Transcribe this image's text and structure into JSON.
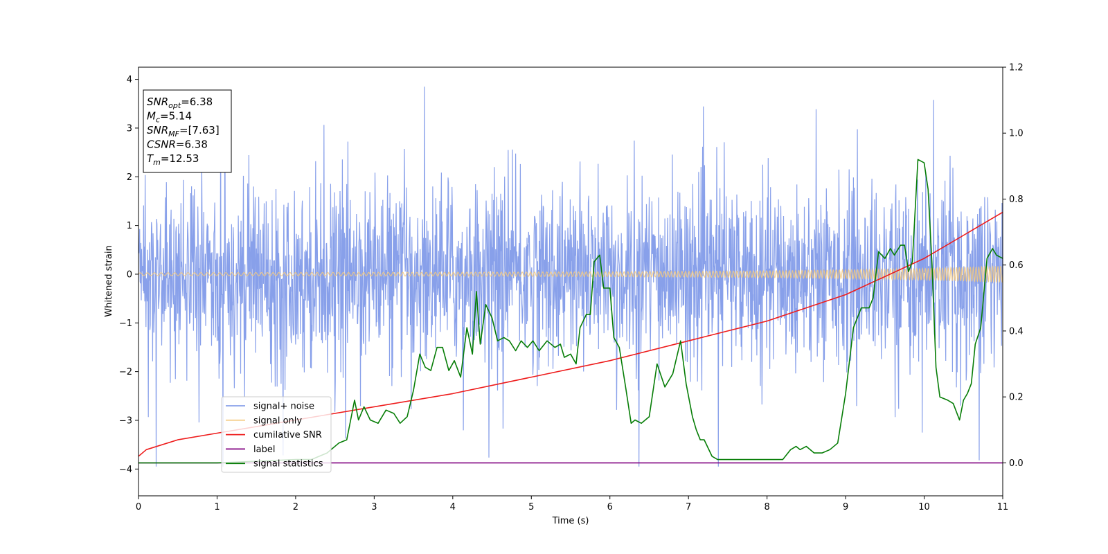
{
  "chart_data": {
    "type": "line",
    "xlabel": "Time (s)",
    "ylabel": "Whitened strain",
    "xlim": [
      0,
      11
    ],
    "ylim": [
      -4.55,
      4.25
    ],
    "y2lim": [
      -0.1,
      1.2
    ],
    "xticks": [
      "0",
      "1",
      "2",
      "3",
      "4",
      "5",
      "6",
      "7",
      "8",
      "9",
      "10",
      "11"
    ],
    "yticks": [
      "4",
      "3",
      "2",
      "1",
      "0",
      "−1",
      "−2",
      "−3",
      "−4"
    ],
    "y2ticks": [
      "0.0",
      "0.2",
      "0.4",
      "0.6",
      "0.8",
      "1.0",
      "1.2"
    ],
    "grid": false,
    "legend_position": "lower-left",
    "legend": [
      {
        "label": "signal+ noise",
        "color": "#7b96e8"
      },
      {
        "label": "signal only",
        "color": "#f5c97e"
      },
      {
        "label": "cumilative SNR",
        "color": "#ee1c1c"
      },
      {
        "label": "label",
        "color": "#800080"
      },
      {
        "label": "signal statistics",
        "color": "#067d06"
      }
    ],
    "info_box": [
      {
        "main": "SNR",
        "sub": "opt",
        "value": "=6.38"
      },
      {
        "main": "M",
        "sub": "c",
        "value": "=5.14"
      },
      {
        "main": "SNR",
        "sub": "MF",
        "value": "=[7.63]"
      },
      {
        "main": "CSNR",
        "sub": "",
        "value": "=6.38"
      },
      {
        "main": "T",
        "sub": "m",
        "value": "=12.53"
      }
    ],
    "series": [
      {
        "name": "signal+ noise",
        "axis": "left",
        "color": "#7b96e8",
        "description": "whitened noise, envelope approx ±1.7 with spikes to ±3.9"
      },
      {
        "name": "signal only",
        "axis": "left",
        "color": "#f5c97e",
        "x": [
          0,
          2,
          4,
          6,
          8,
          9,
          10,
          11
        ],
        "amplitude": [
          0.03,
          0.035,
          0.04,
          0.05,
          0.07,
          0.09,
          0.12,
          0.17
        ]
      },
      {
        "name": "cumilative SNR",
        "axis": "right",
        "color": "#ee1c1c",
        "x": [
          0,
          0.1,
          0.5,
          1,
          2,
          3,
          4,
          5,
          6,
          7,
          8,
          9,
          10,
          11
        ],
        "values": [
          0.02,
          0.04,
          0.07,
          0.09,
          0.13,
          0.17,
          0.21,
          0.26,
          0.31,
          0.37,
          0.43,
          0.51,
          0.62,
          0.76
        ]
      },
      {
        "name": "label",
        "axis": "right",
        "color": "#800080",
        "x": [
          0,
          11
        ],
        "values": [
          0,
          0
        ]
      },
      {
        "name": "signal statistics",
        "axis": "right",
        "color": "#067d06",
        "x": [
          0,
          1,
          2,
          2.2,
          2.4,
          2.55,
          2.65,
          2.75,
          2.8,
          2.87,
          2.95,
          3.05,
          3.15,
          3.25,
          3.33,
          3.42,
          3.5,
          3.58,
          3.65,
          3.72,
          3.8,
          3.87,
          3.95,
          4.02,
          4.1,
          4.18,
          4.25,
          4.3,
          4.35,
          4.42,
          4.5,
          4.57,
          4.65,
          4.72,
          4.8,
          4.87,
          4.95,
          5.02,
          5.1,
          5.2,
          5.3,
          5.37,
          5.42,
          5.5,
          5.57,
          5.62,
          5.7,
          5.75,
          5.8,
          5.87,
          5.92,
          6.0,
          6.05,
          6.12,
          6.2,
          6.27,
          6.32,
          6.4,
          6.5,
          6.6,
          6.7,
          6.8,
          6.9,
          6.97,
          7.05,
          7.1,
          7.15,
          7.2,
          7.3,
          7.37,
          7.45,
          7.55,
          7.7,
          7.9,
          8.0,
          8.1,
          8.2,
          8.3,
          8.37,
          8.42,
          8.5,
          8.6,
          8.7,
          8.8,
          8.9,
          9.0,
          9.1,
          9.2,
          9.3,
          9.35,
          9.42,
          9.5,
          9.57,
          9.62,
          9.7,
          9.75,
          9.8,
          9.85,
          9.92,
          10.0,
          10.05,
          10.1,
          10.15,
          10.2,
          10.3,
          10.37,
          10.45,
          10.5,
          10.55,
          10.6,
          10.65,
          10.72,
          10.8,
          10.87,
          10.92,
          11.0
        ],
        "values": [
          0.0,
          0.0,
          0.01,
          0.01,
          0.03,
          0.06,
          0.07,
          0.19,
          0.13,
          0.17,
          0.13,
          0.12,
          0.16,
          0.15,
          0.12,
          0.14,
          0.22,
          0.33,
          0.29,
          0.28,
          0.35,
          0.35,
          0.28,
          0.31,
          0.26,
          0.41,
          0.33,
          0.52,
          0.36,
          0.48,
          0.44,
          0.37,
          0.38,
          0.37,
          0.34,
          0.37,
          0.35,
          0.37,
          0.34,
          0.37,
          0.35,
          0.36,
          0.32,
          0.33,
          0.3,
          0.41,
          0.45,
          0.45,
          0.61,
          0.63,
          0.53,
          0.53,
          0.38,
          0.35,
          0.23,
          0.12,
          0.13,
          0.12,
          0.14,
          0.3,
          0.23,
          0.27,
          0.37,
          0.24,
          0.14,
          0.1,
          0.07,
          0.07,
          0.02,
          0.01,
          0.01,
          0.01,
          0.01,
          0.01,
          0.01,
          0.01,
          0.01,
          0.04,
          0.05,
          0.04,
          0.05,
          0.03,
          0.03,
          0.04,
          0.06,
          0.21,
          0.41,
          0.47,
          0.47,
          0.5,
          0.64,
          0.62,
          0.65,
          0.63,
          0.66,
          0.66,
          0.58,
          0.61,
          0.92,
          0.91,
          0.83,
          0.6,
          0.29,
          0.2,
          0.19,
          0.18,
          0.13,
          0.19,
          0.21,
          0.24,
          0.36,
          0.41,
          0.62,
          0.65,
          0.63,
          0.62
        ]
      }
    ]
  }
}
